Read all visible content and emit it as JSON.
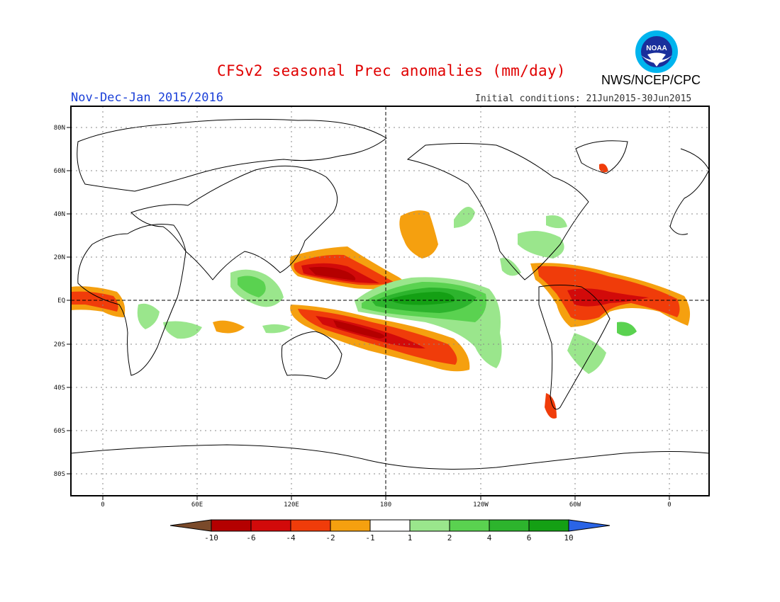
{
  "header": {
    "title": "CFSv2 seasonal Prec anomalies (mm/day)",
    "period": "Nov-Dec-Jan 2015/2016",
    "initial_conditions": "Initial conditions: 21Jun2015-30Jun2015",
    "agency": "NWS/NCEP/CPC",
    "logo_text": "NOAA"
  },
  "map": {
    "lat_labels": [
      "80N",
      "60N",
      "40N",
      "20N",
      "EQ",
      "20S",
      "40S",
      "60S",
      "80S"
    ],
    "lon_labels": [
      "0",
      "60E",
      "120E",
      "180",
      "120W",
      "60W",
      "0"
    ],
    "grid": true,
    "reference_lines": [
      "EQ",
      "180"
    ]
  },
  "colorbar": {
    "labels": [
      "-10",
      "-6",
      "-4",
      "-2",
      "-1",
      "1",
      "2",
      "4",
      "6",
      "10"
    ],
    "colors": [
      "#7a4a2a",
      "#b40000",
      "#d20a0a",
      "#f03c0a",
      "#f5a00f",
      "#ffffff",
      "#9ae68c",
      "#5ad250",
      "#2db42d",
      "#14a014",
      "#2a64e6"
    ]
  }
}
